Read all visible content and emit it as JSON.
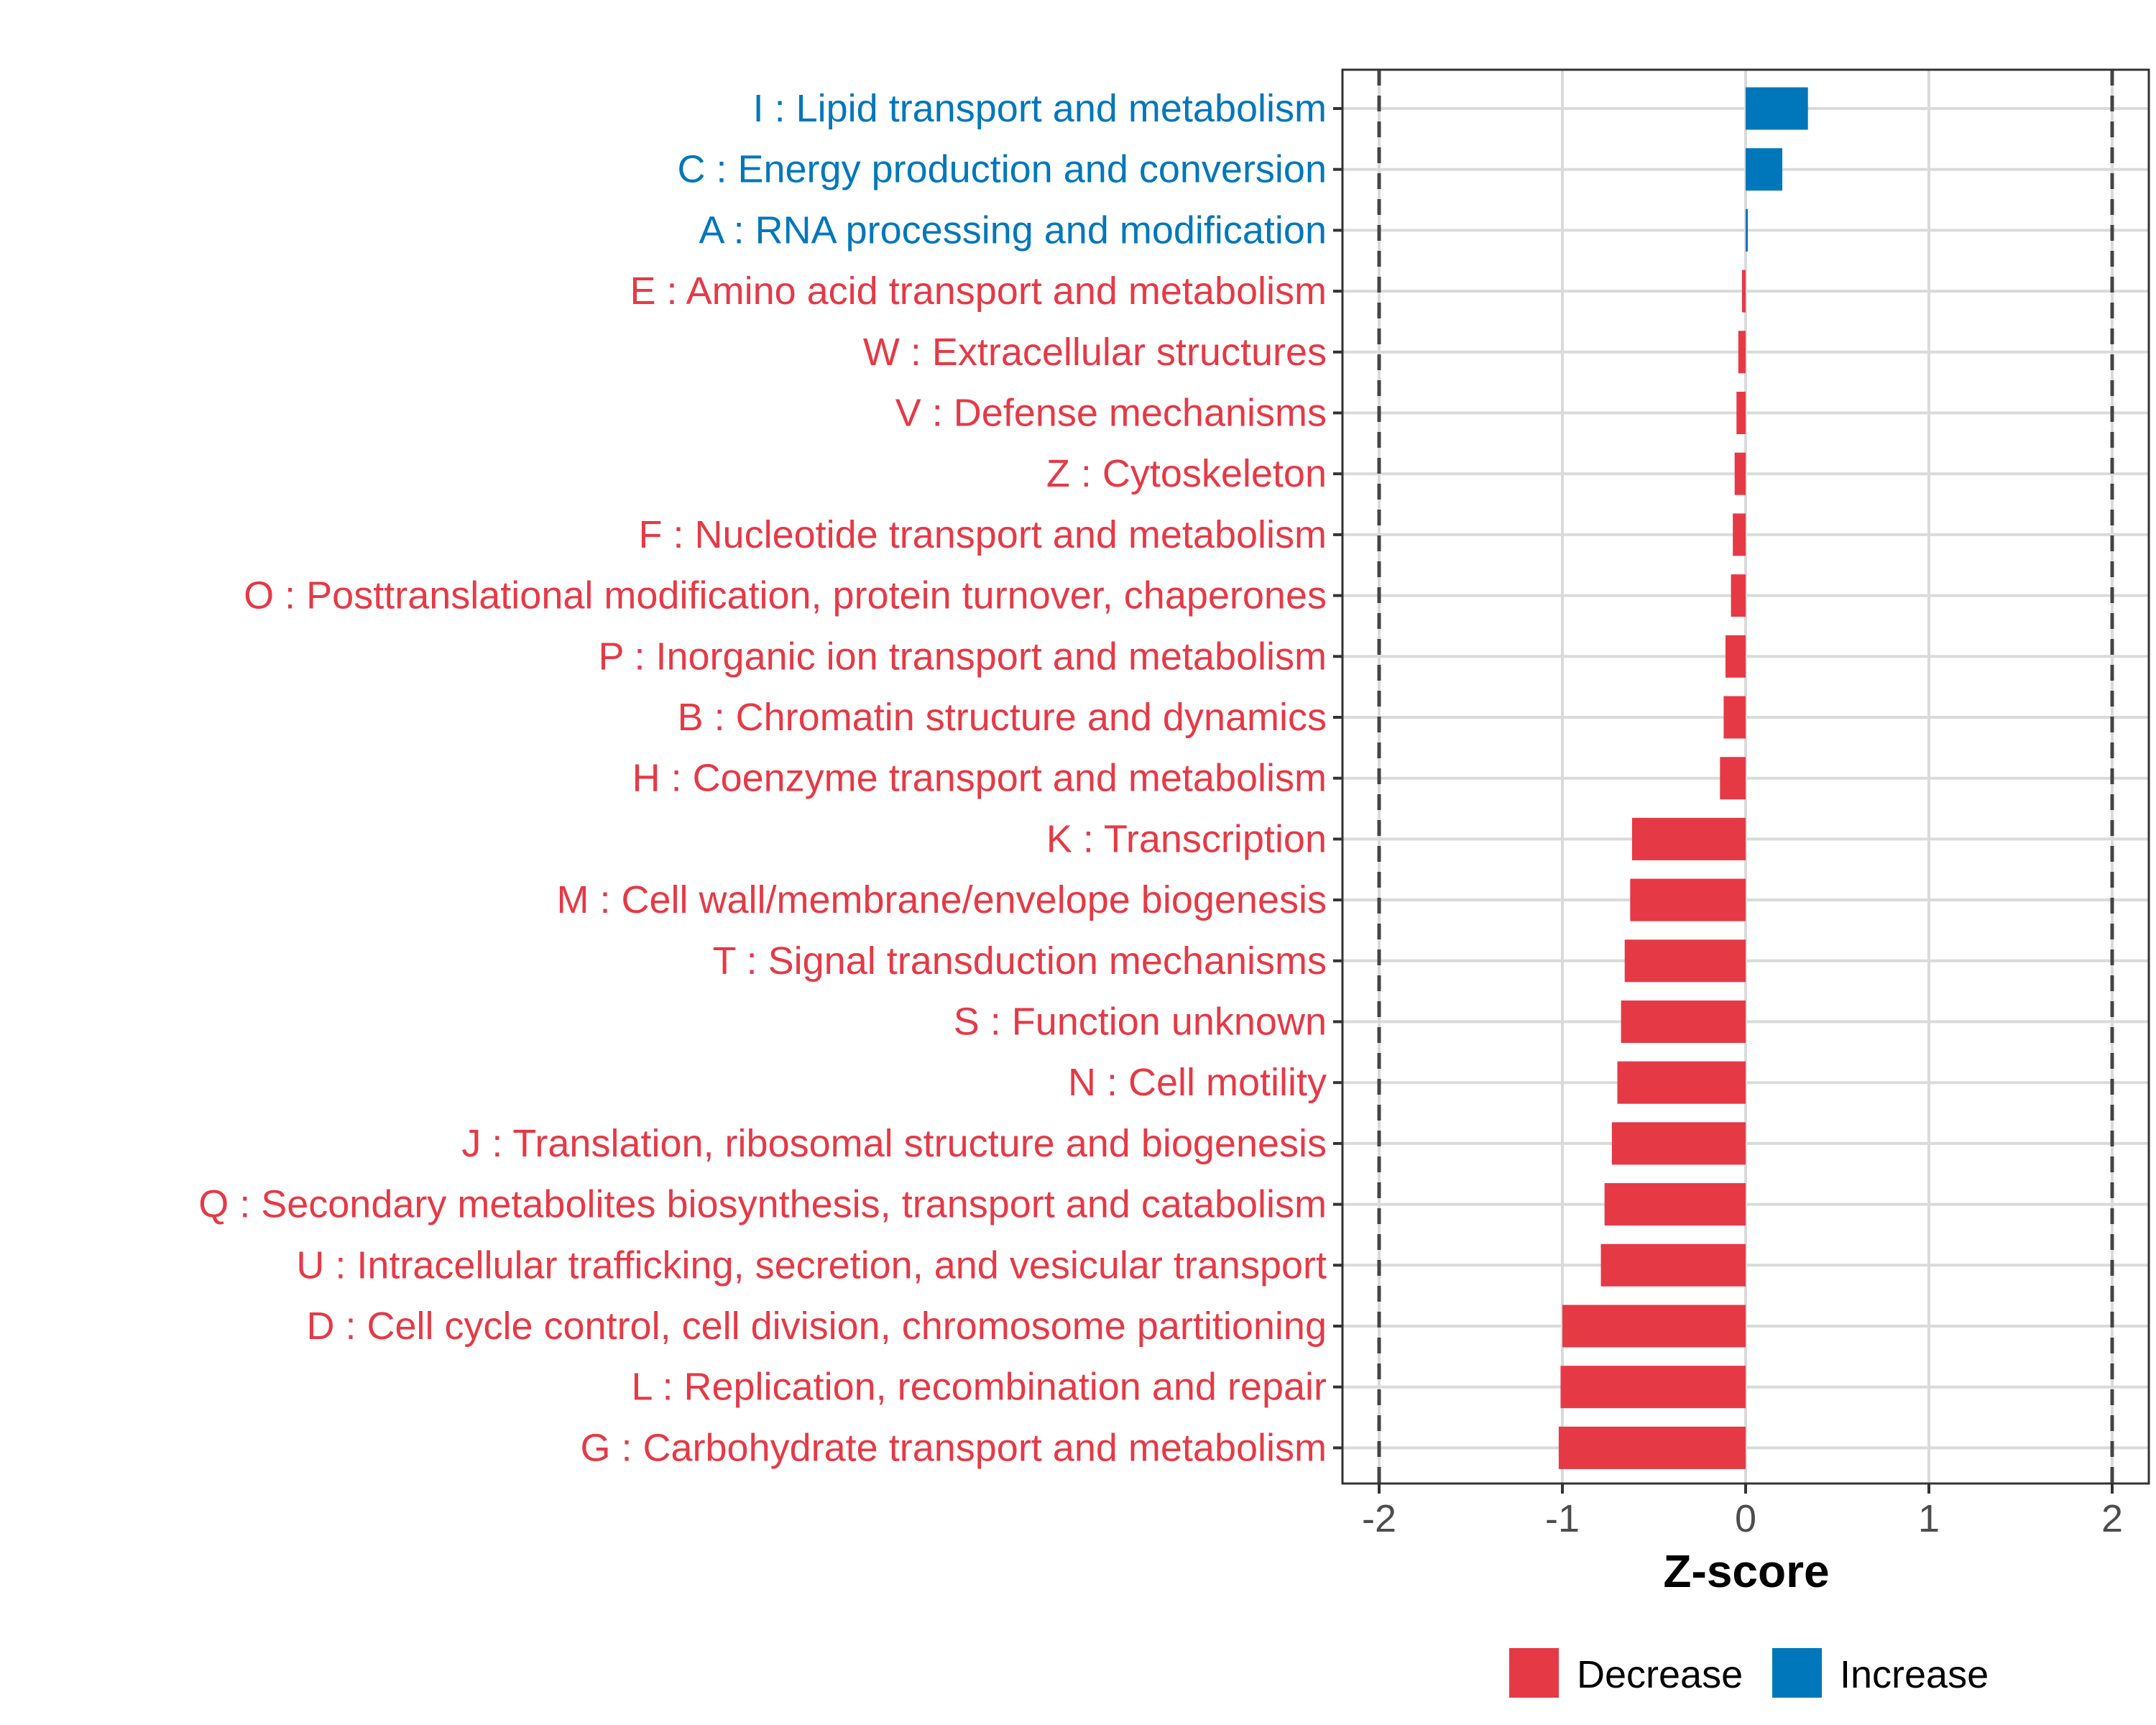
{
  "chart_data": {
    "type": "bar",
    "orientation": "horizontal",
    "title": "",
    "xlabel": "Z-score",
    "ylabel": "",
    "xlim": [
      -2.2,
      2.2
    ],
    "xticks": [
      "-2",
      "-1",
      "0",
      "1",
      "2"
    ],
    "xtick_values": [
      -2,
      -1,
      0,
      1,
      2
    ],
    "reference_lines": [
      -2,
      2
    ],
    "grid": true,
    "legend_position": "bottom",
    "colors": {
      "Decrease": "#E63946",
      "Increase": "#0077BB"
    },
    "categories": [
      "I : Lipid transport and metabolism",
      "C : Energy production and conversion",
      "A : RNA processing and modification",
      "E : Amino acid transport and metabolism",
      "W : Extracellular structures",
      "V : Defense mechanisms",
      "Z : Cytoskeleton",
      "F : Nucleotide transport and metabolism",
      "O : Posttranslational modification, protein turnover, chaperones",
      "P : Inorganic ion transport and metabolism",
      "B : Chromatin structure and dynamics",
      "H : Coenzyme transport and metabolism",
      "K : Transcription",
      "M : Cell wall/membrane/envelope biogenesis",
      "T : Signal transduction mechanisms",
      "S : Function unknown",
      "N : Cell motility",
      "J : Translation, ribosomal structure and biogenesis",
      "Q : Secondary metabolites biosynthesis, transport and catabolism",
      "U : Intracellular trafficking, secretion, and vesicular transport",
      "D : Cell cycle control, cell division, chromosome partitioning",
      "L : Replication, recombination and repair",
      "G : Carbohydrate transport and metabolism"
    ],
    "values": [
      0.34,
      0.2,
      0.01,
      -0.02,
      -0.04,
      -0.05,
      -0.06,
      -0.07,
      -0.08,
      -0.11,
      -0.12,
      -0.14,
      -0.62,
      -0.63,
      -0.66,
      -0.68,
      -0.7,
      -0.73,
      -0.77,
      -0.79,
      -1.0,
      -1.01,
      -1.02
    ],
    "direction": [
      "Increase",
      "Increase",
      "Increase",
      "Decrease",
      "Decrease",
      "Decrease",
      "Decrease",
      "Decrease",
      "Decrease",
      "Decrease",
      "Decrease",
      "Decrease",
      "Decrease",
      "Decrease",
      "Decrease",
      "Decrease",
      "Decrease",
      "Decrease",
      "Decrease",
      "Decrease",
      "Decrease",
      "Decrease",
      "Decrease"
    ],
    "legend": [
      "Decrease",
      "Increase"
    ]
  }
}
